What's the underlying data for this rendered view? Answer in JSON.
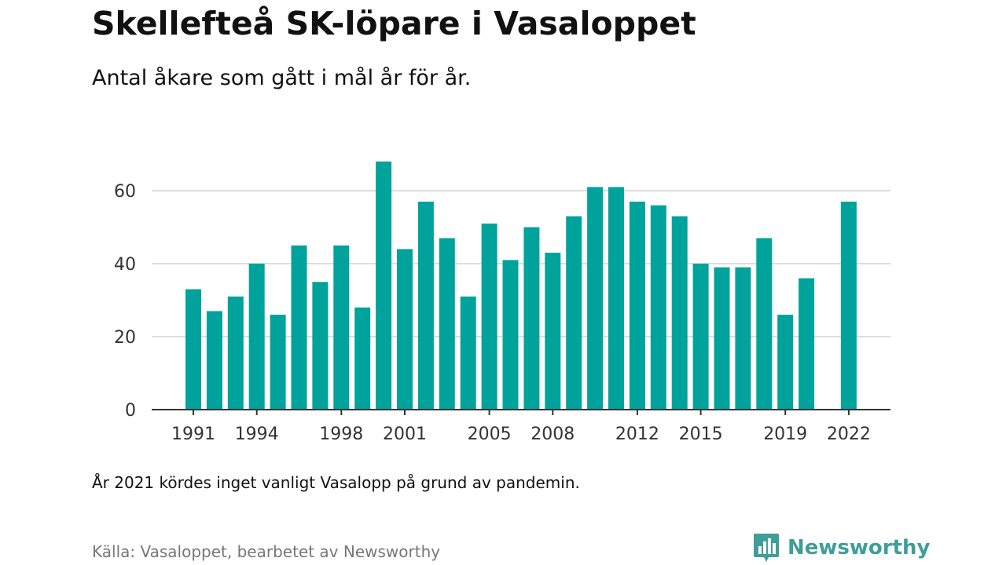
{
  "title": "Skellefteå SK-löpare i Vasaloppet",
  "subtitle": "Antal åkare som gått i mål år för år.",
  "note": "År 2021 kördes inget vanligt Vasalopp på grund av pandemin.",
  "source": "Källa: Vasaloppet, bearbetet av Newsworthy",
  "logo": {
    "text": "Newsworthy",
    "icon": "newsworthy-bar-chart-logo-icon"
  },
  "colors": {
    "bar": "#00a39b",
    "grid": "#dddddd",
    "axis": "#333333",
    "logo": "#3f9e9a"
  },
  "chart_data": {
    "type": "bar",
    "title": "Skellefteå SK-löpare i Vasaloppet",
    "subtitle": "Antal åkare som gått i mål år för år.",
    "xlabel": "",
    "ylabel": "",
    "x_tick_labels": [
      "1991",
      "1994",
      "1998",
      "2001",
      "2005",
      "2008",
      "2012",
      "2015",
      "2019",
      "2022"
    ],
    "y_ticks": [
      0,
      20,
      40,
      60
    ],
    "ylim": [
      0,
      70
    ],
    "grid": true,
    "categories": [
      1991,
      1992,
      1993,
      1994,
      1995,
      1996,
      1997,
      1998,
      1999,
      2000,
      2001,
      2002,
      2003,
      2004,
      2005,
      2006,
      2007,
      2008,
      2009,
      2010,
      2011,
      2012,
      2013,
      2014,
      2015,
      2016,
      2017,
      2018,
      2019,
      2020,
      2021,
      2022
    ],
    "values": [
      33,
      27,
      31,
      40,
      26,
      45,
      35,
      45,
      28,
      68,
      44,
      57,
      47,
      31,
      51,
      41,
      50,
      43,
      53,
      61,
      61,
      57,
      56,
      53,
      40,
      39,
      39,
      47,
      26,
      36,
      null,
      57
    ]
  }
}
